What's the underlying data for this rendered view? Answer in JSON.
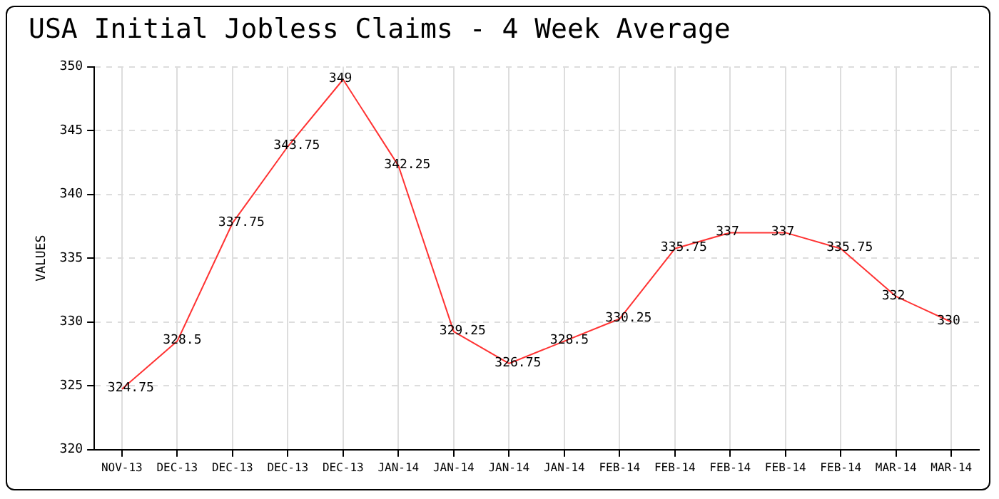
{
  "chart_data": {
    "type": "line",
    "title": "USA Initial Jobless Claims - 4 Week Average",
    "ylabel": "VALUES",
    "categories": [
      "NOV-13",
      "DEC-13",
      "DEC-13",
      "DEC-13",
      "DEC-13",
      "JAN-14",
      "JAN-14",
      "JAN-14",
      "JAN-14",
      "FEB-14",
      "FEB-14",
      "FEB-14",
      "FEB-14",
      "FEB-14",
      "MAR-14",
      "MAR-14"
    ],
    "series": [
      {
        "color": "#ff3333",
        "values": [
          324.75,
          328.5,
          337.75,
          343.75,
          349,
          342.25,
          329.25,
          326.75,
          328.5,
          330.25,
          335.75,
          337,
          337,
          335.75,
          332,
          330
        ]
      }
    ],
    "ylim": [
      320,
      350
    ],
    "yticks": [
      320,
      325,
      330,
      335,
      340,
      345,
      350
    ],
    "grid": true,
    "legend": false,
    "marker": "none",
    "line_style": "solid",
    "data_labels": true
  }
}
